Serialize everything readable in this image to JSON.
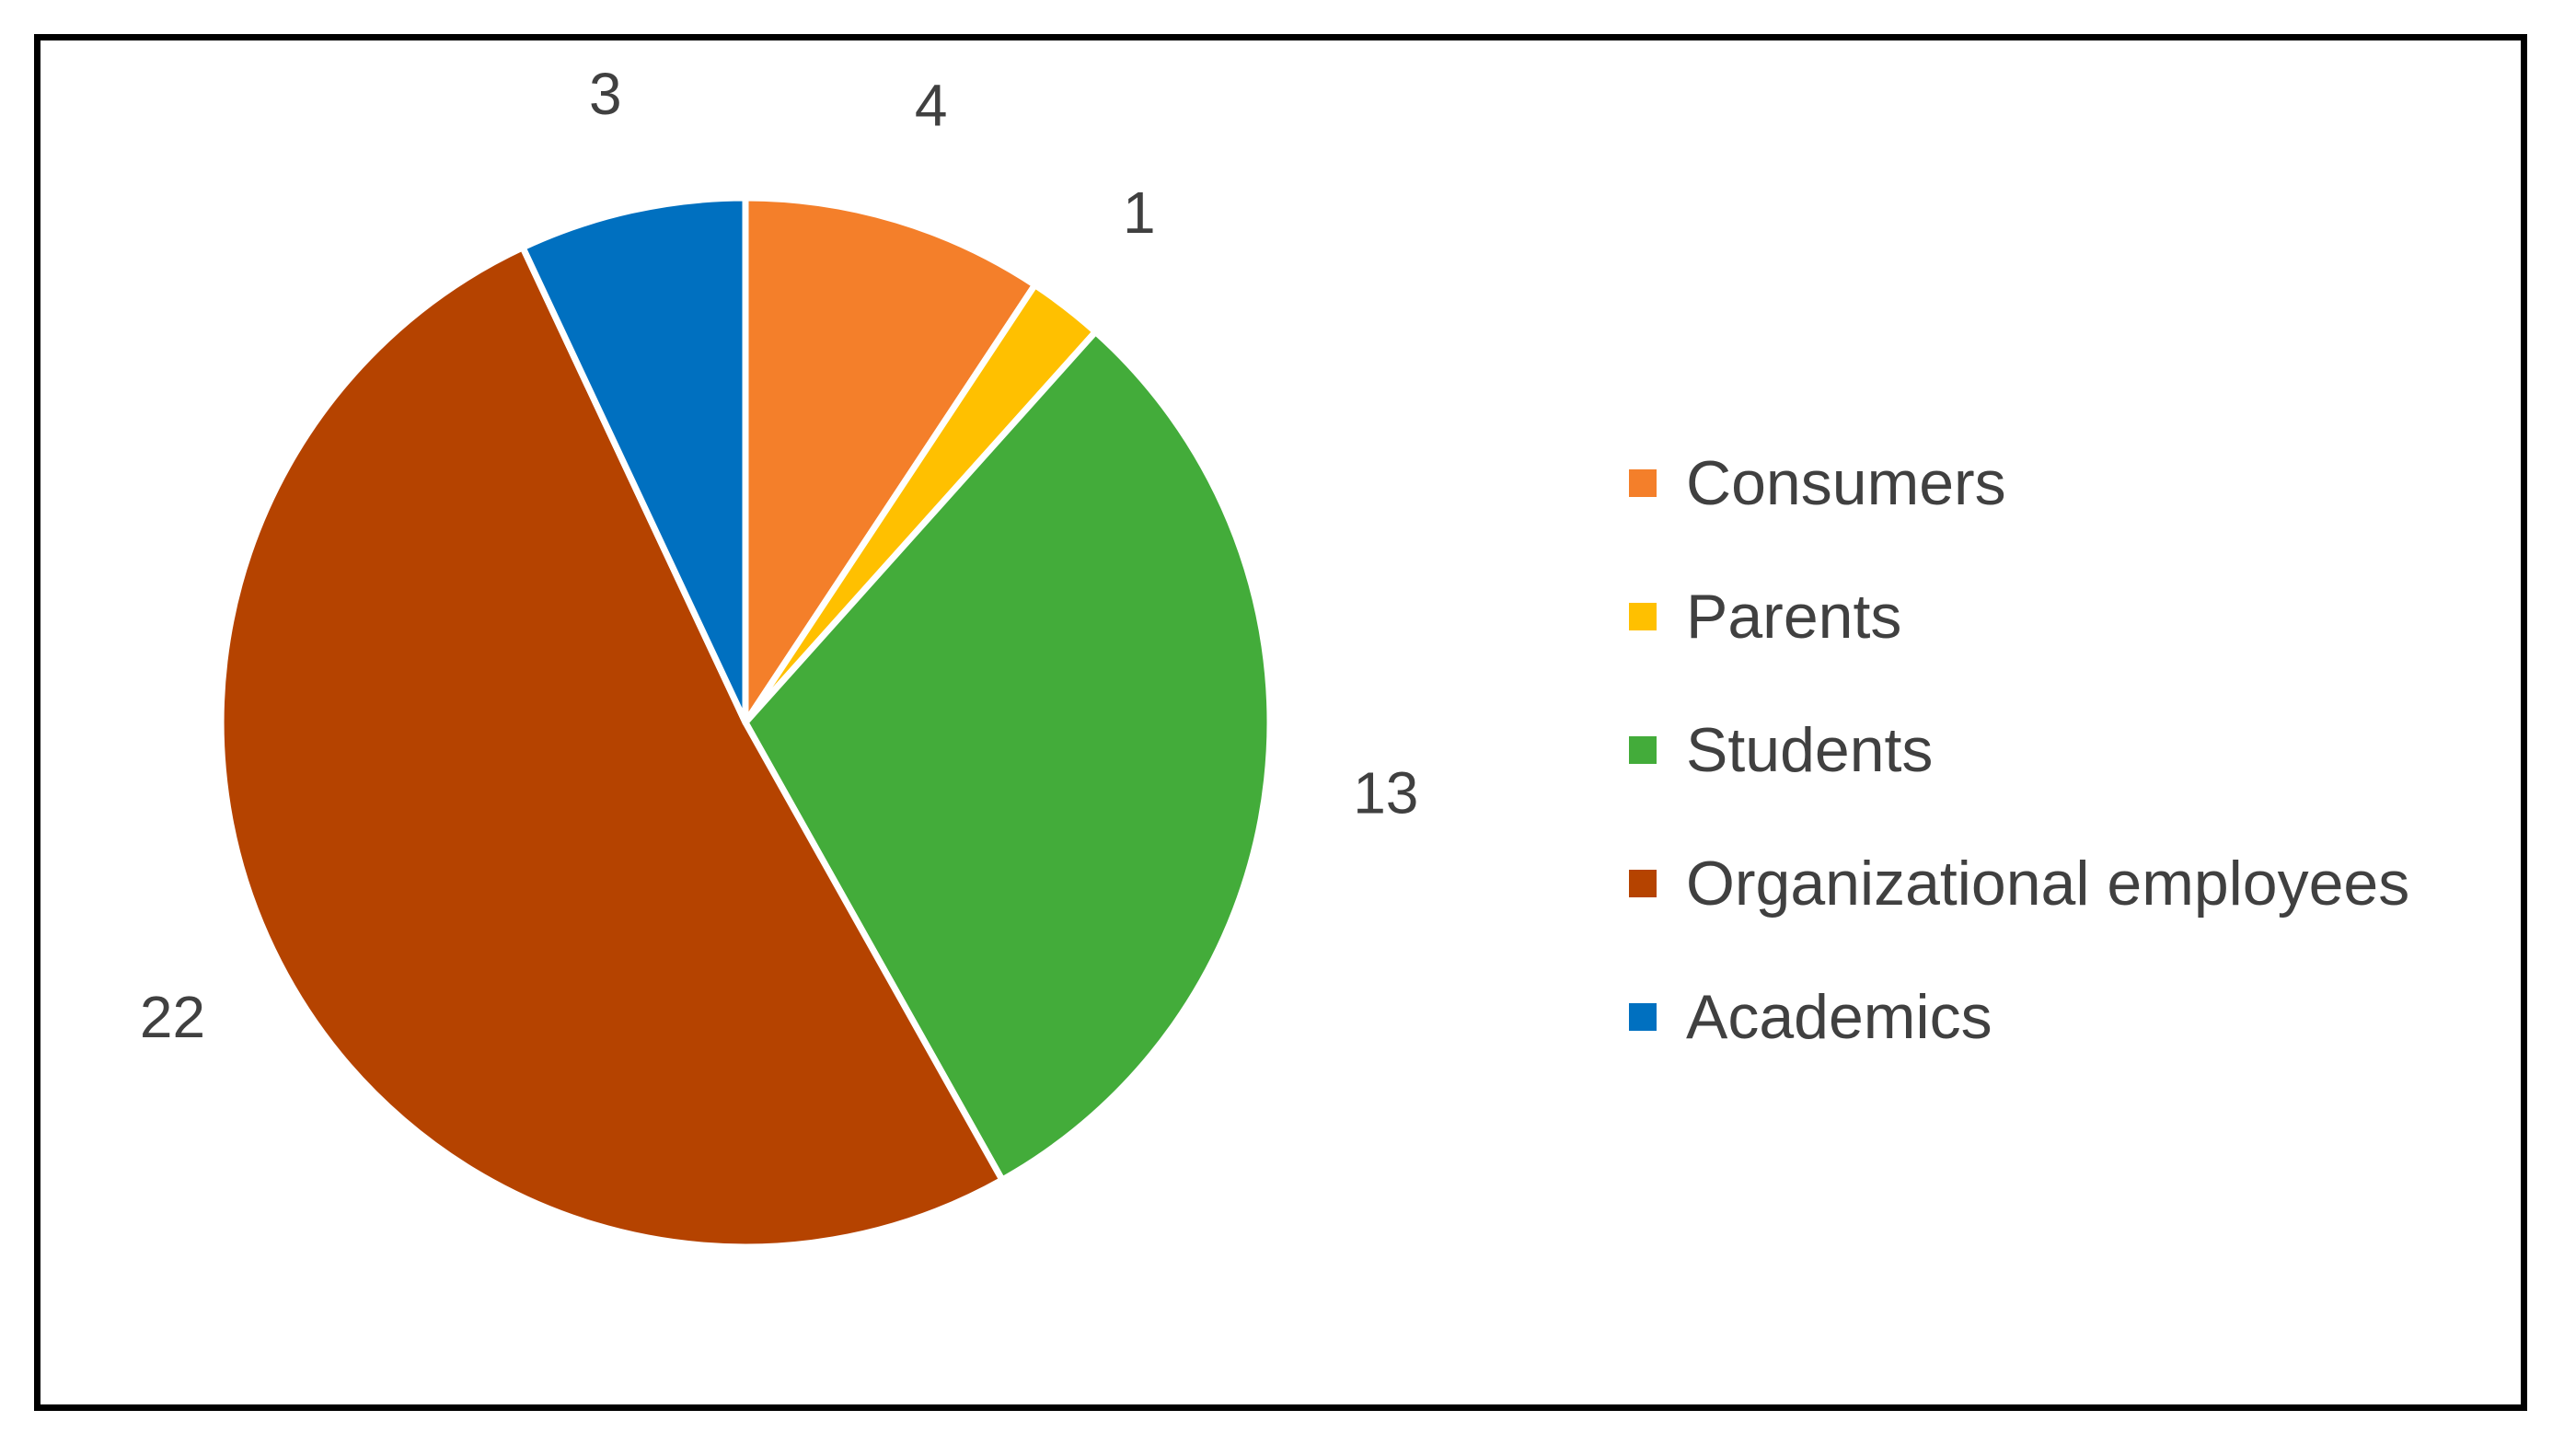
{
  "chart_data": {
    "type": "pie",
    "categories": [
      "Consumers",
      "Parents",
      "Students",
      "Organizational employees",
      "Academics"
    ],
    "values": [
      4,
      1,
      13,
      22,
      3
    ],
    "colors": [
      "#F47F2A",
      "#FFC000",
      "#43AC3A",
      "#B54300",
      "#0070C0"
    ],
    "data_labels": [
      "4",
      "1",
      "13",
      "22",
      "3"
    ],
    "start_angle_deg": 0,
    "direction": "clockwise",
    "legend_position": "right"
  }
}
